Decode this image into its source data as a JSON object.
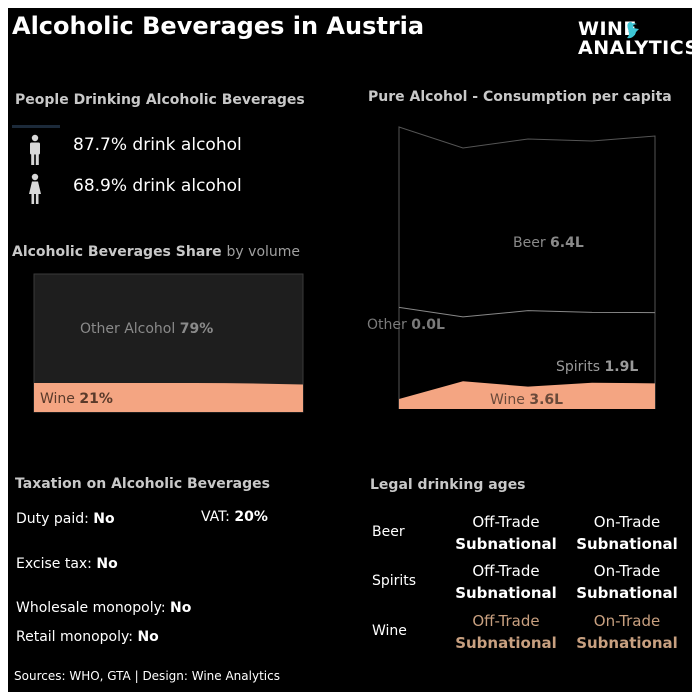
{
  "title": "Alcoholic Beverages in Austria",
  "logo": {
    "line1": "WINE",
    "line2": "ANALYTICS",
    "bird_icon": "bird-icon"
  },
  "drinking": {
    "heading": "People Drinking Alcoholic Beverages",
    "male_text": "87.7% drink alcohol",
    "female_text": "68.9% drink alcohol",
    "male_icon": "male-person-icon",
    "female_icon": "female-person-icon"
  },
  "share": {
    "heading_bold": "Alcoholic Beverages Share",
    "heading_light": "by volume"
  },
  "pure_alcohol": {
    "heading": "Pure Alcohol - Consumption per capita"
  },
  "taxation": {
    "heading": "Taxation on Alcoholic Beverages",
    "items": [
      {
        "label": "Duty paid:",
        "value": "No"
      },
      {
        "label": "VAT:",
        "value": "20%"
      },
      {
        "label": "Excise tax:",
        "value": "No"
      },
      {
        "label": "Wholesale monopoly:",
        "value": "No"
      },
      {
        "label": "Retail monopoly:",
        "value": "No"
      }
    ]
  },
  "ages": {
    "heading": "Legal drinking ages",
    "rows": [
      {
        "beverage": "Beer",
        "off_trade": "Off-Trade",
        "off_value": "Subnational",
        "on_trade": "On-Trade",
        "on_value": "Subnational"
      },
      {
        "beverage": "Spirits",
        "off_trade": "Off-Trade",
        "off_value": "Subnational",
        "on_trade": "On-Trade",
        "on_value": "Subnational"
      },
      {
        "beverage": "Wine",
        "off_trade": "Off-Trade",
        "off_value": "Subnational",
        "on_trade": "On-Trade",
        "on_value": "Subnational"
      }
    ]
  },
  "footer": "Sources: WHO, GTA  |  Design: Wine Analytics",
  "chart_data": [
    {
      "type": "area",
      "title": "Alcoholic Beverages Share by volume",
      "unit": "%",
      "series": [
        {
          "name": "Wine",
          "value": 21,
          "label": "21%",
          "color": "#f4a582"
        },
        {
          "name": "Other Alcohol",
          "value": 79,
          "label": "79%",
          "color": "#1e1e1e"
        }
      ]
    },
    {
      "type": "area",
      "title": "Pure Alcohol - Consumption per capita",
      "unit": "L",
      "series": [
        {
          "name": "Beer",
          "value": 6.4,
          "label": "6.4L",
          "color": "#000000"
        },
        {
          "name": "Other",
          "value": 0.0,
          "label": "0.0L",
          "color": "#000000"
        },
        {
          "name": "Spirits",
          "value": 1.9,
          "label": "1.9L",
          "color": "#000000"
        },
        {
          "name": "Wine",
          "value": 3.6,
          "label": "3.6L",
          "color": "#f4a582"
        }
      ]
    }
  ]
}
